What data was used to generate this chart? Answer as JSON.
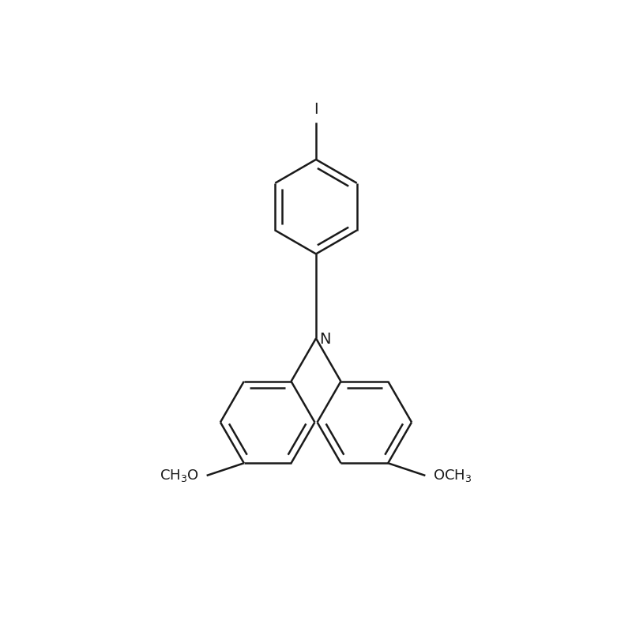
{
  "background_color": "#ffffff",
  "line_color": "#1a1a1a",
  "line_width": 1.8,
  "text_color": "#1a1a1a",
  "figsize": [
    8,
    8
  ],
  "dpi": 100,
  "font_size_N": 14,
  "font_size_I": 14,
  "font_size_methoxy": 13
}
